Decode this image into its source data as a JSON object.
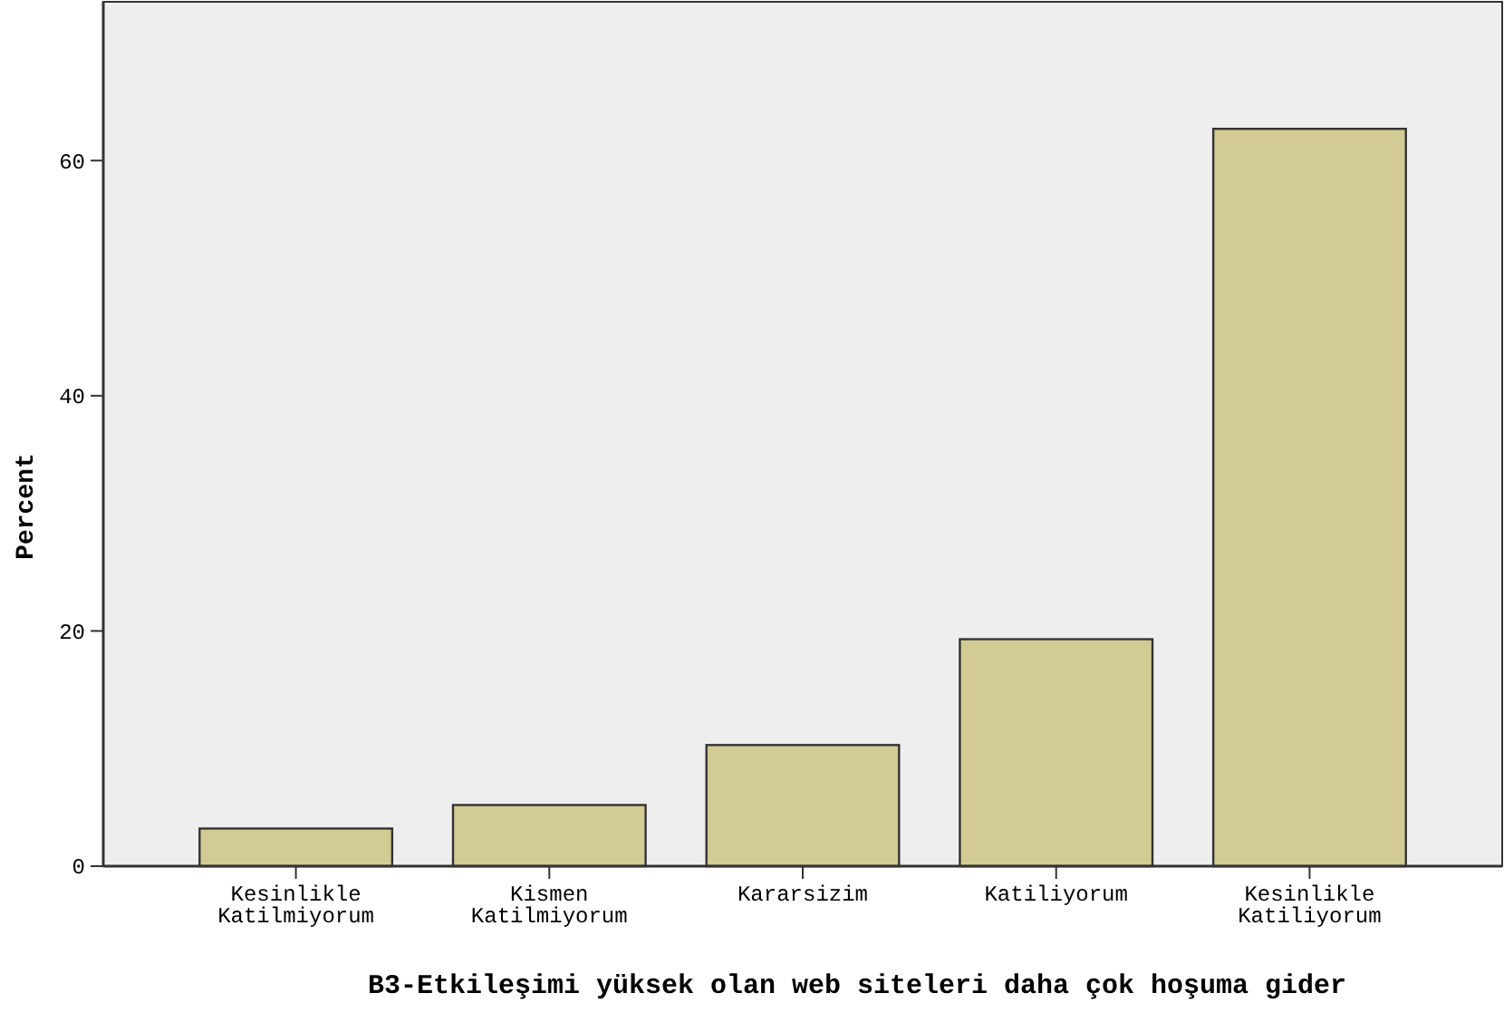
{
  "chart_data": {
    "type": "bar",
    "xlabel": "B3-Etkileşimi yüksek olan web siteleri daha çok hoşuma gider",
    "ylabel": "Percent",
    "categories": [
      "Kesinlikle\nKatilmiyorum",
      "Kismen\nKatilmiyorum",
      "Kararsizim",
      "Katiliyorum",
      "Kesinlikle\nKatiliyorum"
    ],
    "values": [
      3.2,
      5.2,
      10.3,
      19.3,
      62.7
    ],
    "color": "#d2cc94",
    "ylim": [
      0,
      73.5
    ],
    "yticks": [
      0,
      20,
      40,
      60
    ],
    "grid": false
  }
}
